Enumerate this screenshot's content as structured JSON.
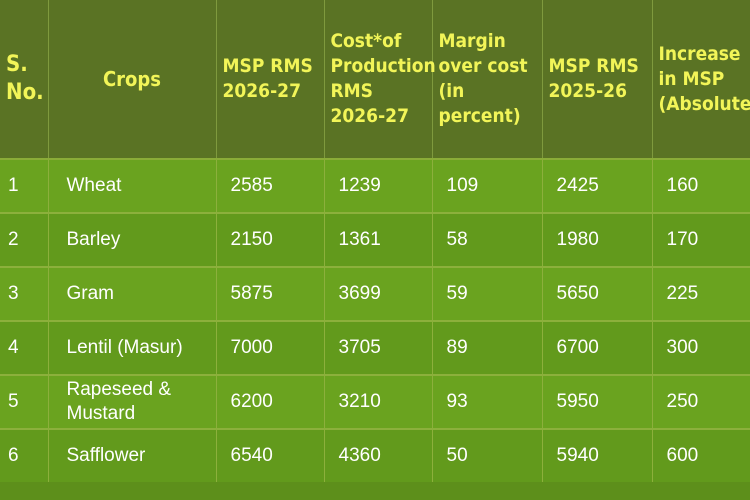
{
  "headers": {
    "sno": [
      "S.",
      "No."
    ],
    "crops": "Crops",
    "msp_2026": [
      "MSP RMS",
      "2026-27"
    ],
    "cost": [
      "Cost*of",
      "Production",
      "RMS",
      "2026-27"
    ],
    "margin": [
      "Margin",
      "over cost",
      "(in percent)"
    ],
    "msp_2025": [
      "MSP RMS",
      "2025-26"
    ],
    "increase": [
      "Increase",
      "in MSP",
      "(Absolute)"
    ]
  },
  "rows": [
    {
      "sno": "1",
      "crop": "Wheat",
      "msp_2026": "2585",
      "cost": "1239",
      "margin": "109",
      "msp_2025": "2425",
      "increase": "160"
    },
    {
      "sno": "2",
      "crop": "Barley",
      "msp_2026": "2150",
      "cost": "1361",
      "margin": "58",
      "msp_2025": "1980",
      "increase": "170"
    },
    {
      "sno": "3",
      "crop": "Gram",
      "msp_2026": "5875",
      "cost": "3699",
      "margin": "59",
      "msp_2025": "5650",
      "increase": "225"
    },
    {
      "sno": "4",
      "crop": "Lentil (Masur)",
      "msp_2026": "7000",
      "cost": "3705",
      "margin": "89",
      "msp_2025": "6700",
      "increase": "300"
    },
    {
      "sno": "5",
      "crop": "Rapeseed & Mustard",
      "msp_2026": "6200",
      "cost": "3210",
      "margin": "93",
      "msp_2025": "5950",
      "increase": "250"
    },
    {
      "sno": "6",
      "crop": "Safflower",
      "msp_2026": "6540",
      "cost": "4360",
      "margin": "50",
      "msp_2025": "5940",
      "increase": "600"
    }
  ]
}
